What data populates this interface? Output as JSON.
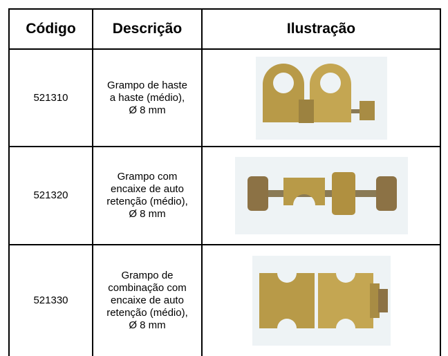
{
  "table": {
    "header": [
      "Código",
      "Descrição",
      "Ilustração"
    ],
    "rows": [
      [
        "521310",
        "Grampo de haste a haste (médio), Ø 8 mm"
      ],
      [
        "521320",
        "Grampo com encaixe de auto retenção (médio), Ø 8 mm"
      ],
      [
        "521330",
        "Grampo de combinação com encaixe de auto retenção (médio), Ø 8 mm"
      ]
    ]
  }
}
